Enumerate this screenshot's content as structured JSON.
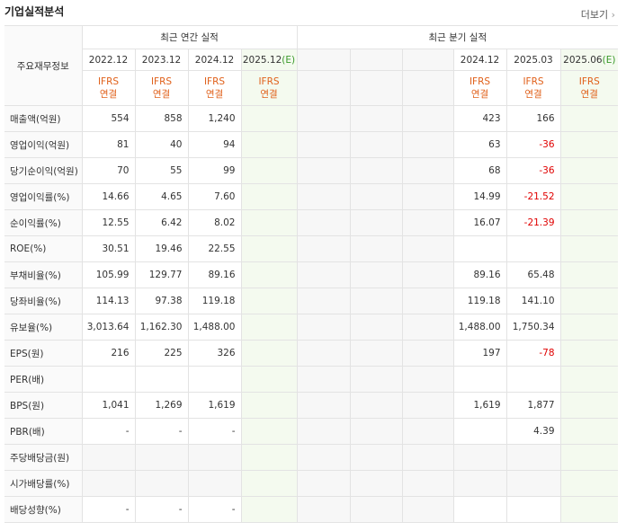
{
  "header": {
    "title": "기업실적분석",
    "more": "더보기"
  },
  "table": {
    "corner": "주요재무정보",
    "groups": [
      {
        "label": "최근 연간 실적",
        "span": 4
      },
      {
        "label": "최근 분기 실적",
        "span": 6
      }
    ],
    "columns": [
      {
        "date": "2022.12",
        "standard": "IFRS 연결"
      },
      {
        "date": "2023.12",
        "standard": "IFRS 연결"
      },
      {
        "date": "2024.12",
        "standard": "IFRS 연결"
      },
      {
        "date": "2025.12",
        "estimate": "(E)",
        "standard": "IFRS 연결"
      },
      {
        "date": null,
        "standard": null
      },
      {
        "date": null,
        "standard": null
      },
      {
        "date": null,
        "standard": null
      },
      {
        "date": "2024.12",
        "standard": "IFRS 연결"
      },
      {
        "date": "2025.03",
        "standard": "IFRS 연결"
      },
      {
        "date": "2025.06",
        "estimate": "(E)",
        "standard": "IFRS 연결"
      }
    ],
    "sections": [
      [
        {
          "label": "매출액(억원)",
          "values": [
            "554",
            "858",
            "1,240",
            null,
            null,
            null,
            null,
            "423",
            "166",
            null
          ]
        },
        {
          "label": "영업이익(억원)",
          "values": [
            "81",
            "40",
            "94",
            null,
            null,
            null,
            null,
            "63",
            "-36",
            null
          ]
        },
        {
          "label": "당기순이익(억원)",
          "values": [
            "70",
            "55",
            "99",
            null,
            null,
            null,
            null,
            "68",
            "-36",
            null
          ]
        }
      ],
      [
        {
          "label": "영업이익률(%)",
          "values": [
            "14.66",
            "4.65",
            "7.60",
            null,
            null,
            null,
            null,
            "14.99",
            "-21.52",
            null
          ]
        },
        {
          "label": "순이익률(%)",
          "values": [
            "12.55",
            "6.42",
            "8.02",
            null,
            null,
            null,
            null,
            "16.07",
            "-21.39",
            null
          ]
        },
        {
          "label": "ROE(%)",
          "values": [
            "30.51",
            "19.46",
            "22.55",
            null,
            null,
            null,
            null,
            null,
            null,
            null
          ]
        }
      ],
      [
        {
          "label": "부채비율(%)",
          "values": [
            "105.99",
            "129.77",
            "89.16",
            null,
            null,
            null,
            null,
            "89.16",
            "65.48",
            null
          ]
        },
        {
          "label": "당좌비율(%)",
          "values": [
            "114.13",
            "97.38",
            "119.18",
            null,
            null,
            null,
            null,
            "119.18",
            "141.10",
            null
          ]
        },
        {
          "label": "유보율(%)",
          "values": [
            "3,013.64",
            "1,162.30",
            "1,488.00",
            null,
            null,
            null,
            null,
            "1,488.00",
            "1,750.34",
            null
          ]
        }
      ],
      [
        {
          "label": "EPS(원)",
          "values": [
            "216",
            "225",
            "326",
            null,
            null,
            null,
            null,
            "197",
            "-78",
            null
          ]
        },
        {
          "label": "PER(배)",
          "values": [
            null,
            null,
            null,
            null,
            null,
            null,
            null,
            null,
            null,
            null
          ]
        },
        {
          "label": "BPS(원)",
          "values": [
            "1,041",
            "1,269",
            "1,619",
            null,
            null,
            null,
            null,
            "1,619",
            "1,877",
            null
          ]
        },
        {
          "label": "PBR(배)",
          "values": [
            "-",
            "-",
            "-",
            null,
            null,
            null,
            null,
            null,
            "4.39",
            null
          ]
        }
      ],
      [
        {
          "label": "주당배당금(원)",
          "values": [
            null,
            null,
            null,
            null,
            null,
            null,
            null,
            null,
            null,
            null
          ]
        },
        {
          "label": "시가배당률(%)",
          "values": [
            null,
            null,
            null,
            null,
            null,
            null,
            null,
            null,
            null,
            null
          ]
        },
        {
          "label": "배당성향(%)",
          "values": [
            "-",
            "-",
            "-",
            null,
            null,
            null,
            null,
            null,
            null,
            null
          ]
        }
      ]
    ]
  }
}
